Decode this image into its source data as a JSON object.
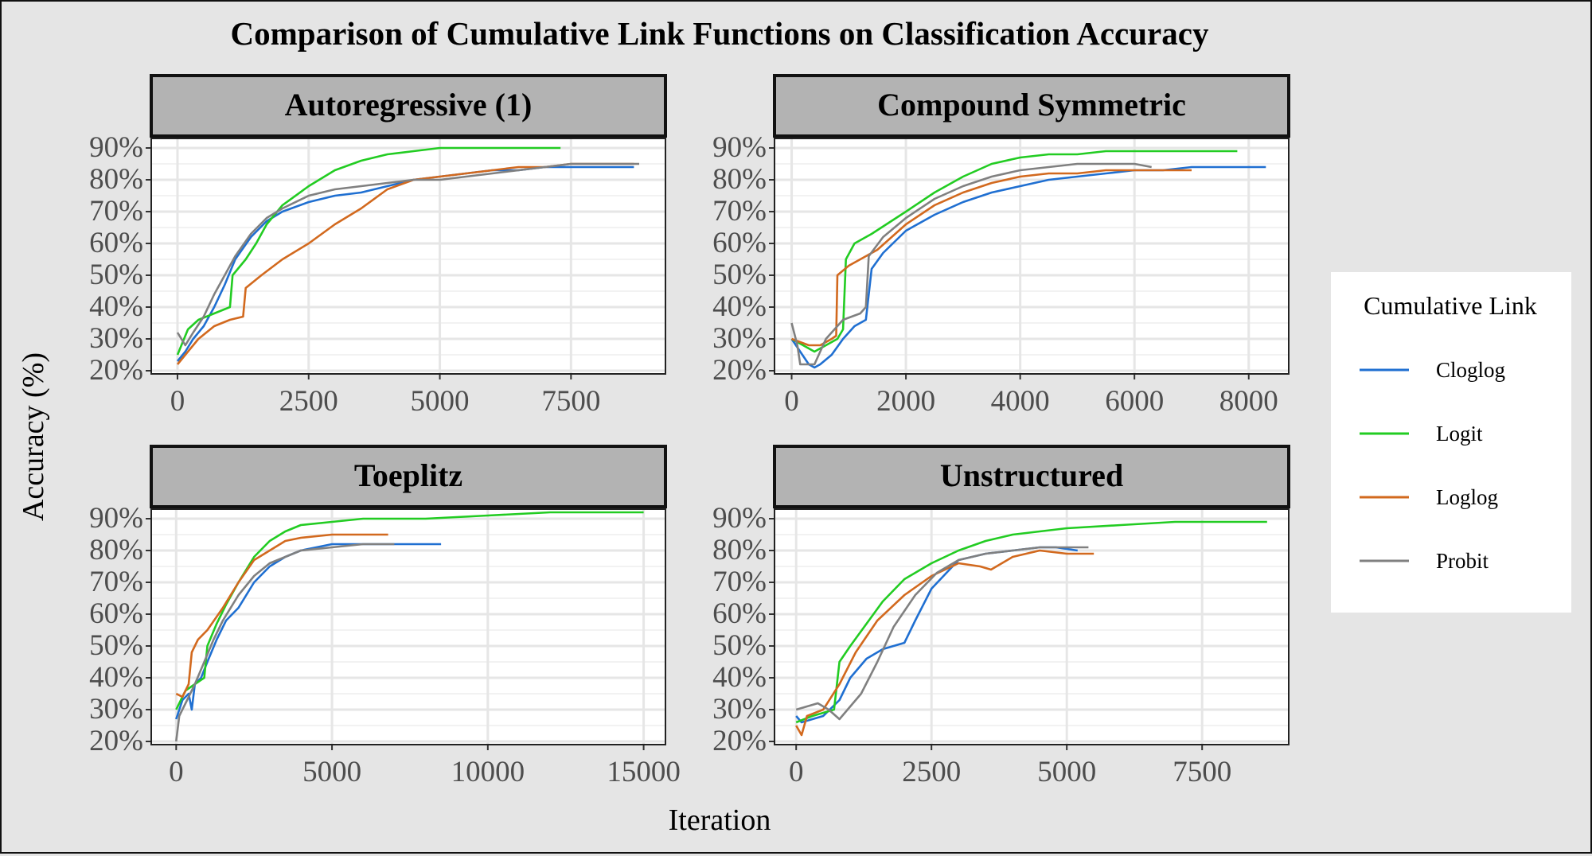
{
  "figure": {
    "title": "Comparison of Cumulative Link Functions on Classification Accuracy",
    "xlabel": "Iteration",
    "ylabel": "Accuracy (%)",
    "legend_title": "Cumulative Link",
    "legend_position": "right"
  },
  "colors": {
    "Cloglog": "#1f6fd1",
    "Logit": "#22cc22",
    "Loglog": "#d2691e",
    "Probit": "#808080",
    "panel_bg": "#ffffff",
    "strip_bg": "#b3b3b3",
    "grid": "#e6e6e6",
    "page_bg": "#e5e5e5"
  },
  "chart_data": [
    {
      "type": "line",
      "panel": "Autoregressive (1)",
      "xlim": [
        -500,
        9300
      ],
      "ylim": [
        19,
        93
      ],
      "xticks": [
        0,
        2500,
        5000,
        7500
      ],
      "yticks": [
        20,
        30,
        40,
        50,
        60,
        70,
        80,
        90
      ],
      "grid": true,
      "series": [
        {
          "name": "Cloglog",
          "x": [
            0,
            150,
            300,
            500,
            700,
            900,
            1100,
            1400,
            1700,
            2000,
            2500,
            3000,
            3500,
            4000,
            4500,
            5000,
            5500,
            6000,
            6500,
            7000,
            7500,
            8000,
            8700
          ],
          "y": [
            23,
            26,
            30,
            34,
            40,
            47,
            55,
            62,
            67,
            70,
            73,
            75,
            76,
            78,
            80,
            81,
            82,
            83,
            83,
            84,
            84,
            84,
            84
          ]
        },
        {
          "name": "Logit",
          "x": [
            0,
            200,
            400,
            700,
            1000,
            1050,
            1300,
            1500,
            1700,
            2000,
            2500,
            3000,
            3500,
            4000,
            4500,
            5000,
            5500,
            6000,
            6500,
            7000,
            7300
          ],
          "y": [
            25,
            33,
            36,
            38,
            40,
            50,
            55,
            60,
            66,
            72,
            78,
            83,
            86,
            88,
            89,
            90,
            90,
            90,
            90,
            90,
            90
          ]
        },
        {
          "name": "Loglog",
          "x": [
            0,
            200,
            400,
            700,
            1000,
            1250,
            1300,
            1600,
            2000,
            2500,
            3000,
            3500,
            4000,
            4500,
            5000,
            5500,
            6000,
            6500,
            7000,
            7500,
            8000,
            8700
          ],
          "y": [
            22,
            26,
            30,
            34,
            36,
            37,
            46,
            50,
            55,
            60,
            66,
            71,
            77,
            80,
            81,
            82,
            83,
            84,
            84,
            85,
            85,
            85
          ]
        },
        {
          "name": "Probit",
          "x": [
            0,
            150,
            300,
            500,
            700,
            900,
            1100,
            1400,
            1700,
            2000,
            2500,
            3000,
            3500,
            4000,
            4500,
            5000,
            5500,
            6000,
            6500,
            7000,
            7500,
            8000,
            8800
          ],
          "y": [
            32,
            28,
            32,
            37,
            44,
            50,
            56,
            63,
            68,
            71,
            75,
            77,
            78,
            79,
            80,
            80,
            81,
            82,
            83,
            84,
            85,
            85,
            85
          ]
        }
      ]
    },
    {
      "type": "line",
      "panel": "Compound Symmetric",
      "xlim": [
        -300,
        8700
      ],
      "ylim": [
        19,
        93
      ],
      "xticks": [
        0,
        2000,
        4000,
        6000,
        8000
      ],
      "yticks": [
        20,
        30,
        40,
        50,
        60,
        70,
        80,
        90
      ],
      "grid": true,
      "series": [
        {
          "name": "Cloglog",
          "x": [
            0,
            150,
            300,
            400,
            500,
            700,
            900,
            1100,
            1300,
            1400,
            1600,
            2000,
            2500,
            3000,
            3500,
            4000,
            4500,
            5000,
            5500,
            6000,
            6500,
            7000,
            7500,
            8300
          ],
          "y": [
            30,
            26,
            22,
            21,
            22,
            25,
            30,
            34,
            36,
            52,
            57,
            64,
            69,
            73,
            76,
            78,
            80,
            81,
            82,
            83,
            83,
            84,
            84,
            84
          ]
        },
        {
          "name": "Logit",
          "x": [
            0,
            200,
            400,
            600,
            800,
            900,
            950,
            1100,
            1400,
            2000,
            2500,
            3000,
            3500,
            4000,
            4500,
            5000,
            5500,
            6000,
            6500,
            7000,
            7800
          ],
          "y": [
            30,
            28,
            26,
            28,
            30,
            33,
            55,
            60,
            63,
            70,
            76,
            81,
            85,
            87,
            88,
            88,
            89,
            89,
            89,
            89,
            89
          ]
        },
        {
          "name": "Loglog",
          "x": [
            0,
            150,
            300,
            500,
            700,
            780,
            800,
            1000,
            1200,
            1500,
            2000,
            2500,
            3000,
            3500,
            4000,
            4500,
            5000,
            5500,
            6000,
            6500,
            7000
          ],
          "y": [
            30,
            29,
            28,
            28,
            30,
            31,
            50,
            53,
            55,
            58,
            66,
            72,
            76,
            79,
            81,
            82,
            82,
            83,
            83,
            83,
            83
          ]
        },
        {
          "name": "Probit",
          "x": [
            0,
            100,
            150,
            400,
            600,
            900,
            1200,
            1300,
            1350,
            1600,
            2000,
            2500,
            3000,
            3500,
            4000,
            4500,
            5000,
            5500,
            6000,
            6300
          ],
          "y": [
            35,
            28,
            22,
            22,
            30,
            36,
            38,
            40,
            56,
            62,
            68,
            74,
            78,
            81,
            83,
            84,
            85,
            85,
            85,
            84
          ]
        }
      ]
    },
    {
      "type": "line",
      "panel": "Toeplitz",
      "xlim": [
        -800,
        15700
      ],
      "ylim": [
        19,
        93
      ],
      "xticks": [
        0,
        5000,
        10000,
        15000
      ],
      "yticks": [
        20,
        30,
        40,
        50,
        60,
        70,
        80,
        90
      ],
      "grid": true,
      "series": [
        {
          "name": "Cloglog",
          "x": [
            0,
            200,
            400,
            500,
            600,
            800,
            1000,
            1300,
            1600,
            2000,
            2500,
            3000,
            3500,
            4000,
            5000,
            6000,
            7000,
            8000,
            8500
          ],
          "y": [
            27,
            33,
            35,
            30,
            38,
            40,
            45,
            52,
            58,
            62,
            70,
            75,
            78,
            80,
            82,
            82,
            82,
            82,
            82
          ]
        },
        {
          "name": "Logit",
          "x": [
            0,
            300,
            600,
            900,
            1000,
            1300,
            1600,
            2000,
            2500,
            3000,
            3500,
            4000,
            5000,
            6000,
            8000,
            10000,
            12000,
            14000,
            15000
          ],
          "y": [
            30,
            36,
            38,
            40,
            50,
            57,
            63,
            70,
            78,
            83,
            86,
            88,
            89,
            90,
            90,
            91,
            92,
            92,
            92
          ]
        },
        {
          "name": "Loglog",
          "x": [
            0,
            200,
            400,
            500,
            700,
            1000,
            1500,
            2000,
            2500,
            3000,
            3500,
            4000,
            5000,
            6000,
            6800
          ],
          "y": [
            35,
            34,
            38,
            48,
            52,
            55,
            62,
            70,
            77,
            80,
            83,
            84,
            85,
            85,
            85
          ]
        },
        {
          "name": "Probit",
          "x": [
            0,
            100,
            300,
            600,
            900,
            1200,
            1500,
            2000,
            2500,
            3000,
            3500,
            4000,
            5000,
            6000,
            7000
          ],
          "y": [
            20,
            28,
            32,
            38,
            45,
            52,
            58,
            66,
            72,
            76,
            78,
            80,
            81,
            82,
            82
          ]
        }
      ]
    },
    {
      "type": "line",
      "panel": "Unstructured",
      "xlim": [
        -400,
        9100
      ],
      "ylim": [
        19,
        93
      ],
      "xticks": [
        0,
        2500,
        5000,
        7500
      ],
      "yticks": [
        20,
        30,
        40,
        50,
        60,
        70,
        80,
        90
      ],
      "grid": true,
      "series": [
        {
          "name": "Cloglog",
          "x": [
            0,
            100,
            300,
            500,
            800,
            1000,
            1300,
            1600,
            2000,
            2200,
            2500,
            3000,
            3500,
            4000,
            4500,
            4800,
            5200
          ],
          "y": [
            28,
            26,
            27,
            28,
            33,
            40,
            46,
            49,
            51,
            58,
            68,
            77,
            79,
            80,
            81,
            81,
            80
          ]
        },
        {
          "name": "Logit",
          "x": [
            0,
            300,
            700,
            800,
            1000,
            1300,
            1600,
            2000,
            2500,
            3000,
            3500,
            4000,
            4500,
            5000,
            6000,
            7000,
            8000,
            8700
          ],
          "y": [
            26,
            28,
            30,
            45,
            50,
            57,
            64,
            71,
            76,
            80,
            83,
            85,
            86,
            87,
            88,
            89,
            89,
            89
          ]
        },
        {
          "name": "Loglog",
          "x": [
            0,
            100,
            200,
            500,
            800,
            1100,
            1500,
            2000,
            2500,
            3000,
            3400,
            3600,
            4000,
            4500,
            5000,
            5500
          ],
          "y": [
            25,
            22,
            28,
            30,
            38,
            48,
            58,
            66,
            72,
            76,
            75,
            74,
            78,
            80,
            79,
            79
          ]
        },
        {
          "name": "Probit",
          "x": [
            0,
            200,
            400,
            600,
            800,
            1000,
            1200,
            1500,
            1800,
            2200,
            2600,
            3000,
            3500,
            4000,
            4500,
            5000,
            5400
          ],
          "y": [
            30,
            31,
            32,
            30,
            27,
            31,
            35,
            45,
            56,
            66,
            73,
            77,
            79,
            80,
            81,
            81,
            81
          ]
        }
      ]
    }
  ]
}
